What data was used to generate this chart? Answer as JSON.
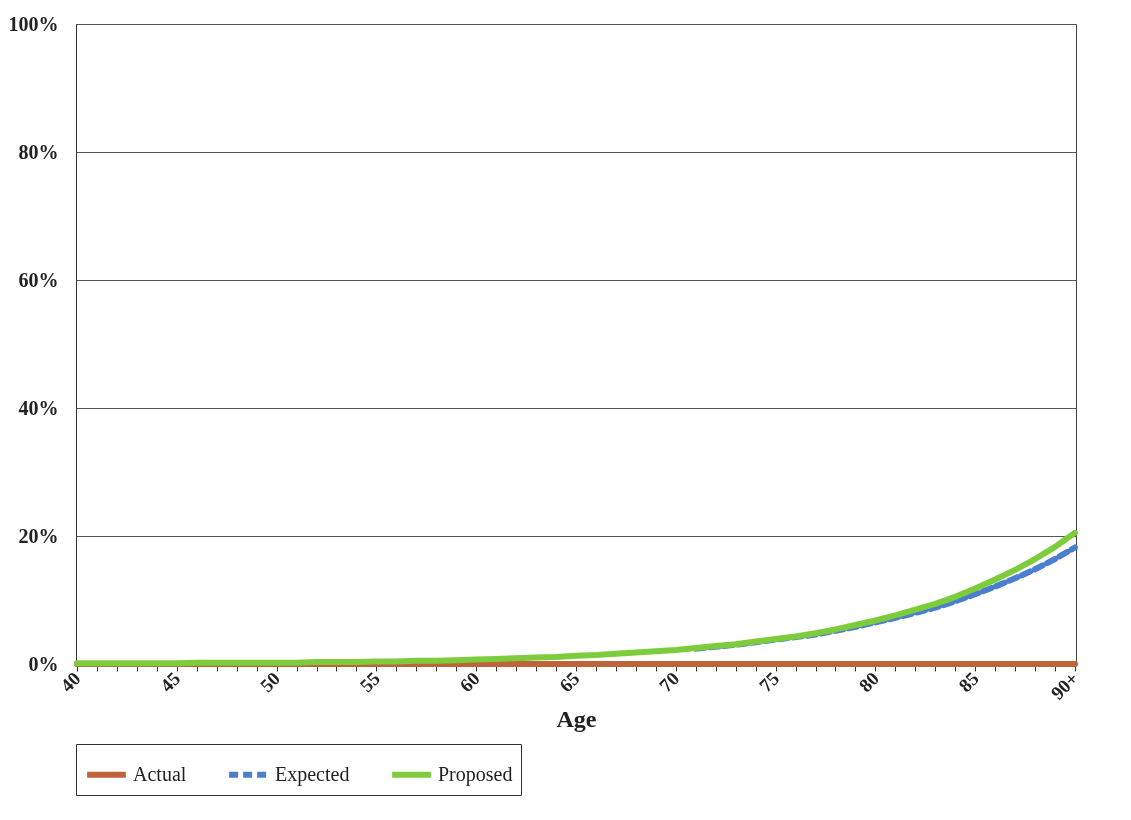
{
  "chart_data": {
    "type": "line",
    "xlabel": "Age",
    "categories": [
      "40",
      null,
      null,
      null,
      null,
      "45",
      null,
      null,
      null,
      null,
      "50",
      null,
      null,
      null,
      null,
      "55",
      null,
      null,
      null,
      null,
      "60",
      null,
      null,
      null,
      null,
      "65",
      null,
      null,
      null,
      null,
      "70",
      null,
      null,
      null,
      null,
      "75",
      null,
      null,
      null,
      null,
      "80",
      null,
      null,
      null,
      null,
      "85",
      null,
      null,
      null,
      null,
      "90+"
    ],
    "series": [
      {
        "name": "Actual",
        "color": "#c0623a",
        "line_style": "solid",
        "values": [
          0,
          0,
          0,
          0,
          0,
          0,
          0,
          0,
          0,
          0,
          0,
          0,
          0,
          0,
          0,
          0,
          0,
          0,
          0,
          0,
          0,
          0,
          0,
          0,
          0,
          0,
          0,
          0,
          0,
          0,
          0,
          0,
          0,
          0,
          0,
          0,
          0,
          0,
          0,
          0,
          0,
          0,
          0,
          0,
          0,
          0,
          0,
          0,
          0,
          0,
          0
        ]
      },
      {
        "name": "Expected",
        "color": "#4a7fd0",
        "line_style": "dashed",
        "values": [
          null,
          null,
          null,
          null,
          null,
          null,
          null,
          null,
          null,
          null,
          null,
          null,
          null,
          null,
          null,
          null,
          null,
          null,
          null,
          null,
          null,
          null,
          null,
          null,
          null,
          null,
          null,
          null,
          null,
          null,
          null,
          2.4,
          2.7,
          3.0,
          3.4,
          3.8,
          4.2,
          4.6,
          5.2,
          5.8,
          6.5,
          7.2,
          8.0,
          8.8,
          9.8,
          10.9,
          12.1,
          13.4,
          14.8,
          16.4,
          18.2
        ]
      },
      {
        "name": "Proposed",
        "color": "#7ccc3c",
        "line_style": "solid",
        "values": [
          0.1,
          0.1,
          0.1,
          0.1,
          0.1,
          0.1,
          0.2,
          0.2,
          0.2,
          0.2,
          0.2,
          0.2,
          0.3,
          0.3,
          0.3,
          0.4,
          0.4,
          0.5,
          0.5,
          0.6,
          0.7,
          0.8,
          0.9,
          1.0,
          1.1,
          1.3,
          1.4,
          1.6,
          1.8,
          2.0,
          2.2,
          2.5,
          2.8,
          3.1,
          3.5,
          3.9,
          4.3,
          4.8,
          5.4,
          6.1,
          6.8,
          7.6,
          8.5,
          9.4,
          10.5,
          11.8,
          13.2,
          14.7,
          16.4,
          18.3,
          20.5
        ]
      }
    ],
    "ylim": [
      0,
      100
    ],
    "yticks": [
      {
        "value": 0,
        "label": "0%"
      },
      {
        "value": 20,
        "label": "20%"
      },
      {
        "value": 40,
        "label": "40%"
      },
      {
        "value": 60,
        "label": "60%"
      },
      {
        "value": 80,
        "label": "80%"
      },
      {
        "value": 100,
        "label": "100%"
      }
    ],
    "grid": "y",
    "legend": "bottom",
    "marker": "none"
  }
}
